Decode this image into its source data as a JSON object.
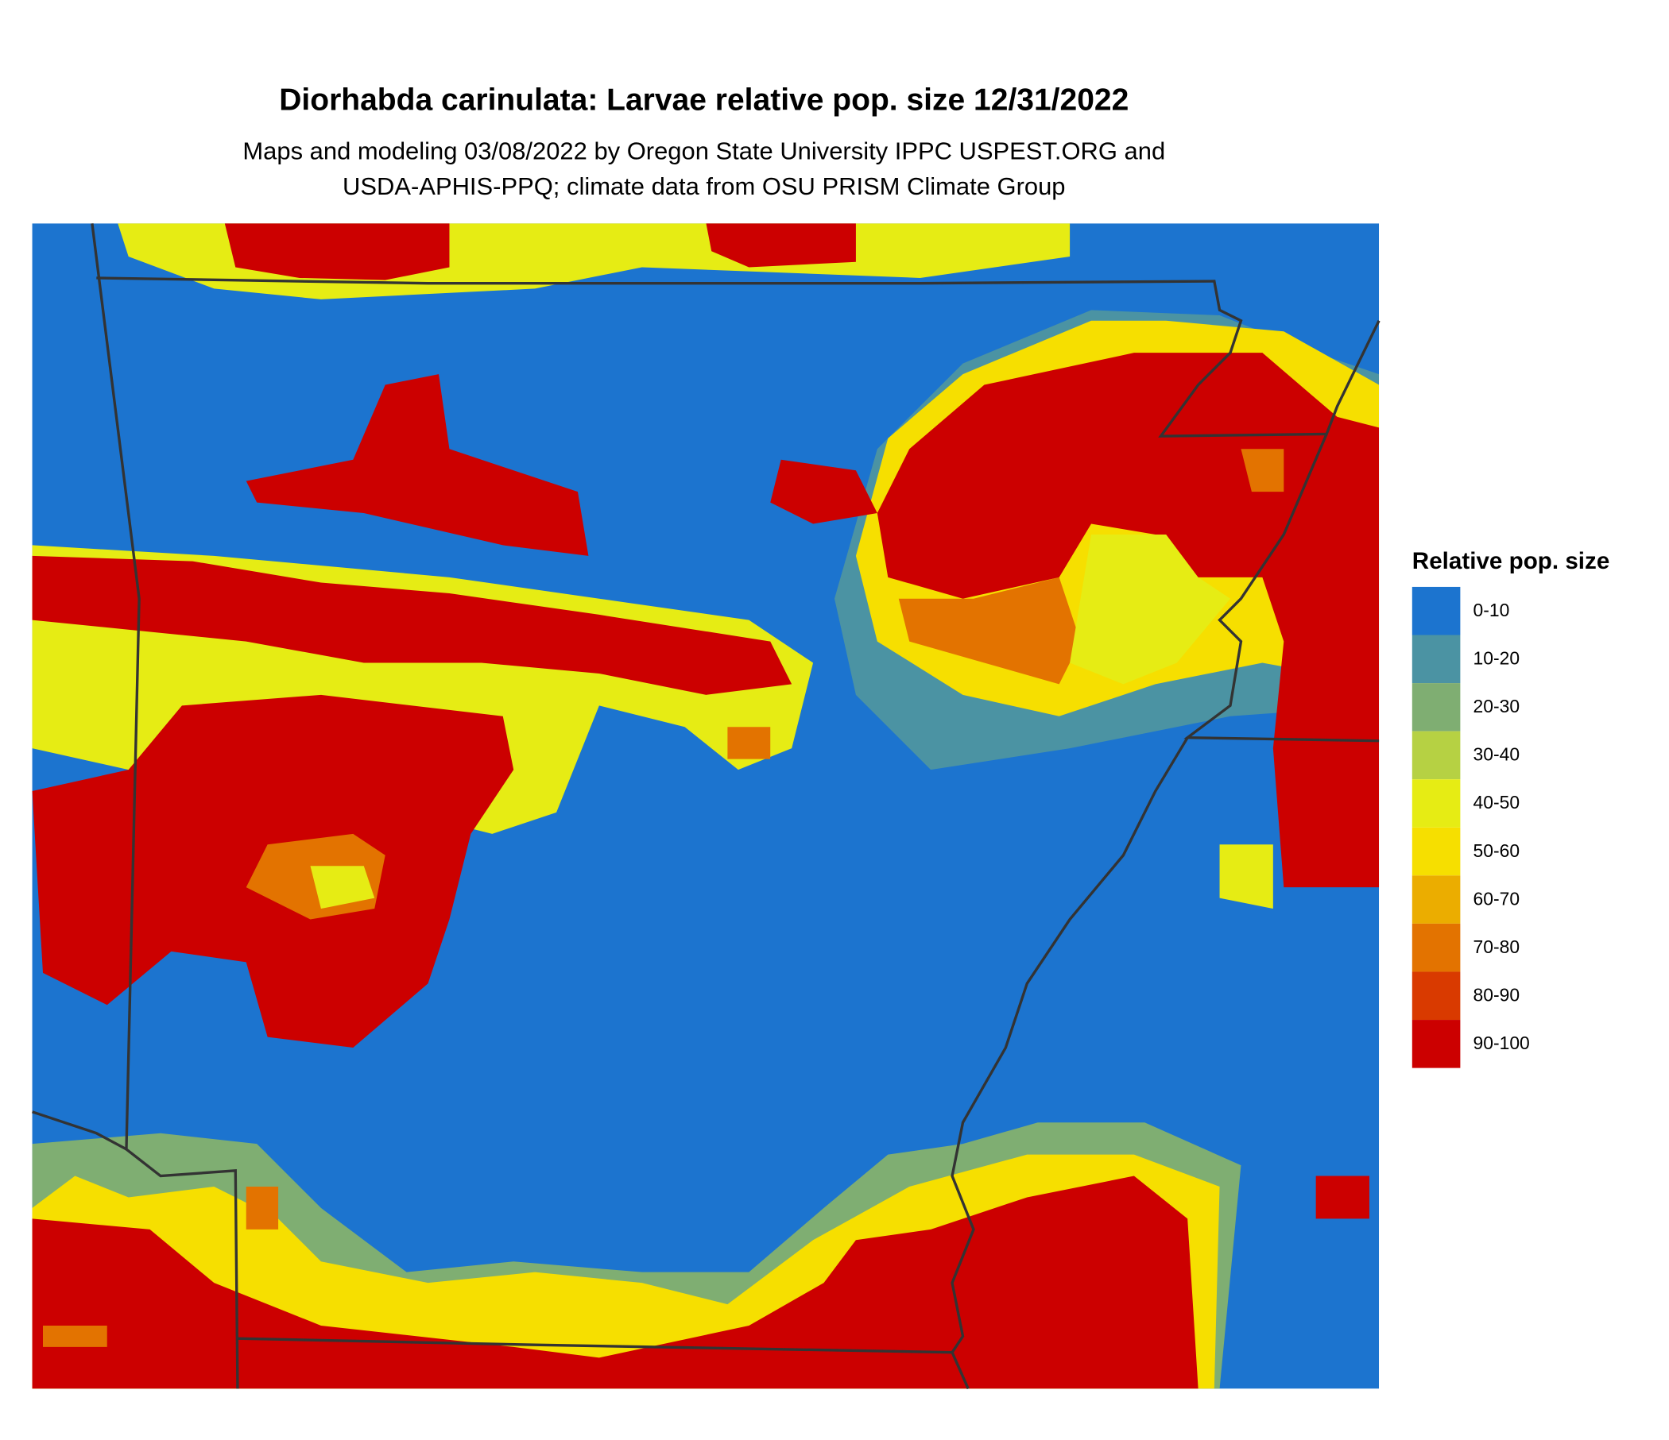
{
  "title": "Diorhabda carinulata: Larvae relative pop. size 12/31/2022",
  "subtitle": [
    "Maps and modeling 03/08/2022 by Oregon State University IPPC USPEST.ORG and",
    "USDA-APHIS-PPQ; climate data from OSU PRISM Climate Group"
  ],
  "legend": {
    "title": "Relative pop. size",
    "items": [
      {
        "label": "0-10",
        "color": "#1c74cf"
      },
      {
        "label": "10-20",
        "color": "#4b93a3"
      },
      {
        "label": "20-30",
        "color": "#7fae72"
      },
      {
        "label": "30-40",
        "color": "#b6d143"
      },
      {
        "label": "40-50",
        "color": "#e6ec14"
      },
      {
        "label": "50-60",
        "color": "#f6df00"
      },
      {
        "label": "60-70",
        "color": "#ebad00"
      },
      {
        "label": "70-80",
        "color": "#e37300"
      },
      {
        "label": "80-90",
        "color": "#d93a00"
      },
      {
        "label": "90-100",
        "color": "#cc0000"
      }
    ]
  }
}
